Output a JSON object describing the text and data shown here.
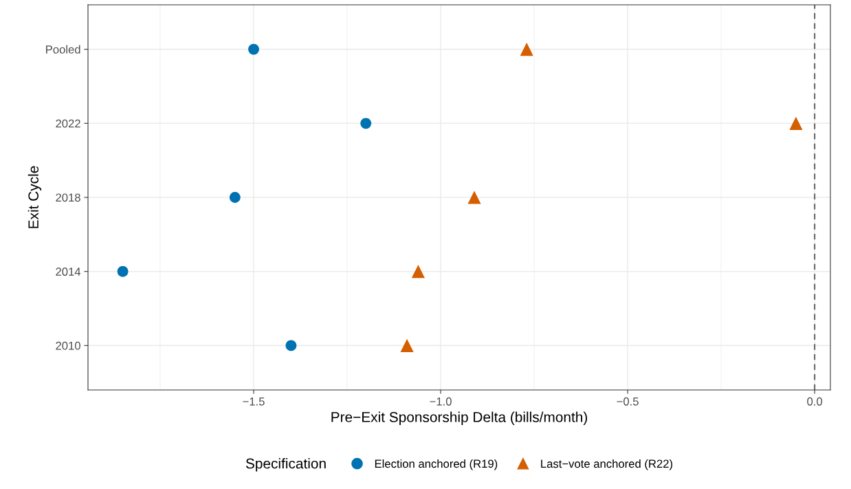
{
  "chart_data": {
    "type": "scatter",
    "orientation": "horizontal",
    "xlabel": "Pre−Exit Sponsorship Delta (bills/month)",
    "ylabel": "Exit Cycle",
    "legend_title": "Specification",
    "categories": [
      "Pooled",
      "2022",
      "2018",
      "2014",
      "2010"
    ],
    "series": [
      {
        "name": "Election anchored (R19)",
        "color": "#0072b2",
        "marker": "circle",
        "values": [
          -1.5,
          -1.2,
          -1.55,
          -1.85,
          -1.4
        ]
      },
      {
        "name": "Last−vote anchored (R22)",
        "color": "#d55e00",
        "marker": "triangle",
        "values": [
          -0.77,
          -0.05,
          -0.91,
          -1.06,
          -1.09
        ]
      }
    ],
    "xlim": [
      -1.943,
      0.042
    ],
    "xticks": [
      {
        "value": -1.75,
        "label": null
      },
      {
        "value": -1.5,
        "label": "−1.5"
      },
      {
        "value": -1.25,
        "label": null
      },
      {
        "value": -1.0,
        "label": "−1.0"
      },
      {
        "value": -0.75,
        "label": null
      },
      {
        "value": -0.5,
        "label": "−0.5"
      },
      {
        "value": -0.25,
        "label": null
      },
      {
        "value": 0.0,
        "label": "0.0"
      }
    ],
    "ref_lines": [
      {
        "axis": "x",
        "value": 0,
        "color": "#666666",
        "line_style": "dashed"
      }
    ],
    "grid": true,
    "legend": "bottom"
  }
}
